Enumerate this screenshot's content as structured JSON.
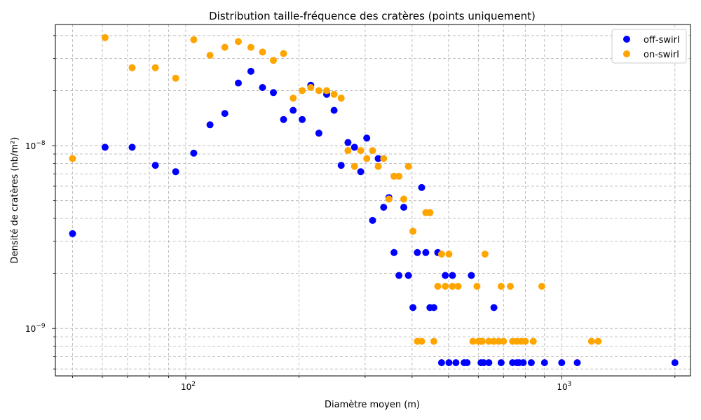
{
  "chart_data": {
    "type": "scatter",
    "title": "Distribution taille-fréquence des cratères (points uniquement)",
    "xlabel": "Diamètre moyen (m)",
    "ylabel": "Densité de cratères (nb/m²)",
    "xscale": "log",
    "yscale": "log",
    "xlim": [
      45,
      2200
    ],
    "ylim": [
      5.5e-10,
      4.6e-08
    ],
    "grid": true,
    "legend_position": "top-right",
    "x_ticks": [
      {
        "value": 100,
        "base": "10",
        "exp": "2"
      },
      {
        "value": 1000,
        "base": "10",
        "exp": "3"
      }
    ],
    "y_ticks": [
      {
        "value": 1e-09,
        "base": "10",
        "exp": "−9"
      },
      {
        "value": 1e-08,
        "base": "10",
        "exp": "−8"
      }
    ],
    "series": [
      {
        "name": "off-swirl",
        "color": "#0000ff",
        "points": [
          [
            50,
            3.3e-09
          ],
          [
            61,
            9.8e-09
          ],
          [
            72,
            9.8e-09
          ],
          [
            83,
            7.8e-09
          ],
          [
            94,
            7.2e-09
          ],
          [
            105,
            9.1e-09
          ],
          [
            116,
            1.3e-08
          ],
          [
            127,
            1.5e-08
          ],
          [
            138,
            2.2e-08
          ],
          [
            149,
            2.55e-08
          ],
          [
            160,
            2.08e-08
          ],
          [
            171,
            1.95e-08
          ],
          [
            182,
            1.39e-08
          ],
          [
            193,
            1.56e-08
          ],
          [
            204,
            1.39e-08
          ],
          [
            215,
            2.14e-08
          ],
          [
            226,
            1.17e-08
          ],
          [
            237,
            1.91e-08
          ],
          [
            248,
            1.56e-08
          ],
          [
            259,
            7.8e-09
          ],
          [
            270,
            1.04e-08
          ],
          [
            281,
            9.8e-09
          ],
          [
            292,
            7.2e-09
          ],
          [
            303,
            1.1e-08
          ],
          [
            314,
            3.9e-09
          ],
          [
            325,
            8.5e-09
          ],
          [
            336,
            4.6e-09
          ],
          [
            347,
            5.2e-09
          ],
          [
            358,
            2.6e-09
          ],
          [
            369,
            1.95e-09
          ],
          [
            380,
            4.6e-09
          ],
          [
            391,
            1.95e-09
          ],
          [
            402,
            1.3e-09
          ],
          [
            413,
            2.6e-09
          ],
          [
            424,
            5.9e-09
          ],
          [
            435,
            2.6e-09
          ],
          [
            446,
            1.3e-09
          ],
          [
            457,
            1.3e-09
          ],
          [
            468,
            2.6e-09
          ],
          [
            479,
            6.5e-10
          ],
          [
            490,
            1.95e-09
          ],
          [
            501,
            6.5e-10
          ],
          [
            512,
            1.95e-09
          ],
          [
            523,
            6.5e-10
          ],
          [
            550,
            6.5e-10
          ],
          [
            560,
            6.5e-10
          ],
          [
            575,
            1.95e-09
          ],
          [
            610,
            6.5e-10
          ],
          [
            620,
            6.5e-10
          ],
          [
            640,
            6.5e-10
          ],
          [
            660,
            1.3e-09
          ],
          [
            690,
            6.5e-10
          ],
          [
            740,
            6.5e-10
          ],
          [
            760,
            6.5e-10
          ],
          [
            770,
            6.5e-10
          ],
          [
            790,
            6.5e-10
          ],
          [
            830,
            6.5e-10
          ],
          [
            900,
            6.5e-10
          ],
          [
            1000,
            6.5e-10
          ],
          [
            2000,
            6.5e-10
          ],
          [
            1100,
            6.5e-10
          ]
        ]
      },
      {
        "name": "on-swirl",
        "color": "#ffa500",
        "points": [
          [
            50,
            8.5e-09
          ],
          [
            61,
            3.9e-08
          ],
          [
            72,
            2.67e-08
          ],
          [
            83,
            2.67e-08
          ],
          [
            94,
            2.34e-08
          ],
          [
            105,
            3.8e-08
          ],
          [
            116,
            3.12e-08
          ],
          [
            127,
            3.45e-08
          ],
          [
            138,
            3.71e-08
          ],
          [
            149,
            3.45e-08
          ],
          [
            160,
            3.25e-08
          ],
          [
            171,
            2.93e-08
          ],
          [
            182,
            3.19e-08
          ],
          [
            193,
            1.82e-08
          ],
          [
            204,
            2e-08
          ],
          [
            215,
            2.08e-08
          ],
          [
            226,
            2e-08
          ],
          [
            237,
            2e-08
          ],
          [
            248,
            1.91e-08
          ],
          [
            259,
            1.82e-08
          ],
          [
            270,
            9.4e-09
          ],
          [
            281,
            7.7e-09
          ],
          [
            292,
            9.4e-09
          ],
          [
            303,
            8.5e-09
          ],
          [
            314,
            9.4e-09
          ],
          [
            325,
            7.7e-09
          ],
          [
            336,
            8.5e-09
          ],
          [
            347,
            5.1e-09
          ],
          [
            358,
            6.8e-09
          ],
          [
            369,
            6.8e-09
          ],
          [
            380,
            5.1e-09
          ],
          [
            391,
            7.7e-09
          ],
          [
            402,
            3.4e-09
          ],
          [
            413,
            8.5e-10
          ],
          [
            424,
            8.5e-10
          ],
          [
            435,
            4.3e-09
          ],
          [
            446,
            4.3e-09
          ],
          [
            457,
            8.5e-10
          ],
          [
            468,
            1.7e-09
          ],
          [
            479,
            2.55e-09
          ],
          [
            490,
            1.7e-09
          ],
          [
            501,
            2.55e-09
          ],
          [
            512,
            1.7e-09
          ],
          [
            530,
            1.7e-09
          ],
          [
            580,
            8.5e-10
          ],
          [
            595,
            1.7e-09
          ],
          [
            600,
            8.5e-10
          ],
          [
            610,
            8.5e-10
          ],
          [
            615,
            8.5e-10
          ],
          [
            625,
            2.55e-09
          ],
          [
            640,
            8.5e-10
          ],
          [
            660,
            8.5e-10
          ],
          [
            680,
            8.5e-10
          ],
          [
            690,
            1.7e-09
          ],
          [
            700,
            8.5e-10
          ],
          [
            730,
            1.7e-09
          ],
          [
            740,
            8.5e-10
          ],
          [
            760,
            8.5e-10
          ],
          [
            780,
            8.5e-10
          ],
          [
            800,
            8.5e-10
          ],
          [
            840,
            8.5e-10
          ],
          [
            1200,
            8.5e-10
          ],
          [
            1250,
            8.5e-10
          ],
          [
            885,
            1.7e-09
          ]
        ]
      }
    ]
  }
}
